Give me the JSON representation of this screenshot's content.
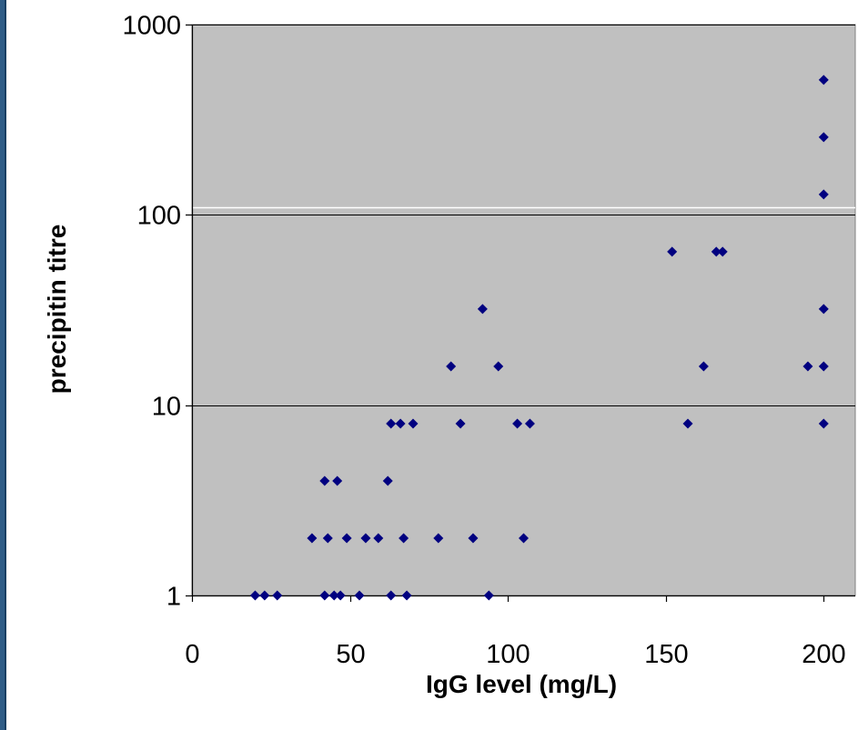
{
  "chart_data": {
    "type": "scatter",
    "title": "",
    "xlabel": "IgG level (mg/L)",
    "ylabel": "precipitin titre",
    "xlim": [
      0,
      210
    ],
    "ylim": [
      1,
      1000
    ],
    "y_scale": "log",
    "x_ticks": [
      0,
      50,
      100,
      150,
      200
    ],
    "y_ticks": [
      1,
      10,
      100,
      1000
    ],
    "x_tick_labels": [
      "0",
      "50",
      "100",
      "150",
      "200"
    ],
    "y_tick_labels": [
      "1",
      "10",
      "100",
      "1000"
    ],
    "grid": "horizontal",
    "legend": "none",
    "plot_background": "#c0c0c0",
    "marker": "diamond",
    "marker_color": "#000080",
    "reference_line_y": 110,
    "reference_line_color": "#ffffff",
    "points": [
      {
        "x": 20,
        "y": 1
      },
      {
        "x": 23,
        "y": 1
      },
      {
        "x": 27,
        "y": 1
      },
      {
        "x": 42,
        "y": 1
      },
      {
        "x": 45,
        "y": 1
      },
      {
        "x": 47,
        "y": 1
      },
      {
        "x": 53,
        "y": 1
      },
      {
        "x": 63,
        "y": 1
      },
      {
        "x": 68,
        "y": 1
      },
      {
        "x": 94,
        "y": 1
      },
      {
        "x": 38,
        "y": 2
      },
      {
        "x": 43,
        "y": 2
      },
      {
        "x": 49,
        "y": 2
      },
      {
        "x": 55,
        "y": 2
      },
      {
        "x": 59,
        "y": 2
      },
      {
        "x": 67,
        "y": 2
      },
      {
        "x": 78,
        "y": 2
      },
      {
        "x": 89,
        "y": 2
      },
      {
        "x": 105,
        "y": 2
      },
      {
        "x": 42,
        "y": 4
      },
      {
        "x": 46,
        "y": 4
      },
      {
        "x": 62,
        "y": 4
      },
      {
        "x": 63,
        "y": 8
      },
      {
        "x": 66,
        "y": 8
      },
      {
        "x": 70,
        "y": 8
      },
      {
        "x": 85,
        "y": 8
      },
      {
        "x": 103,
        "y": 8
      },
      {
        "x": 107,
        "y": 8
      },
      {
        "x": 157,
        "y": 8
      },
      {
        "x": 200,
        "y": 8
      },
      {
        "x": 82,
        "y": 16
      },
      {
        "x": 97,
        "y": 16
      },
      {
        "x": 162,
        "y": 16
      },
      {
        "x": 195,
        "y": 16
      },
      {
        "x": 200,
        "y": 16
      },
      {
        "x": 92,
        "y": 32
      },
      {
        "x": 200,
        "y": 32
      },
      {
        "x": 152,
        "y": 64
      },
      {
        "x": 166,
        "y": 64
      },
      {
        "x": 168,
        "y": 64
      },
      {
        "x": 200,
        "y": 128
      },
      {
        "x": 200,
        "y": 256
      },
      {
        "x": 200,
        "y": 512
      }
    ]
  }
}
